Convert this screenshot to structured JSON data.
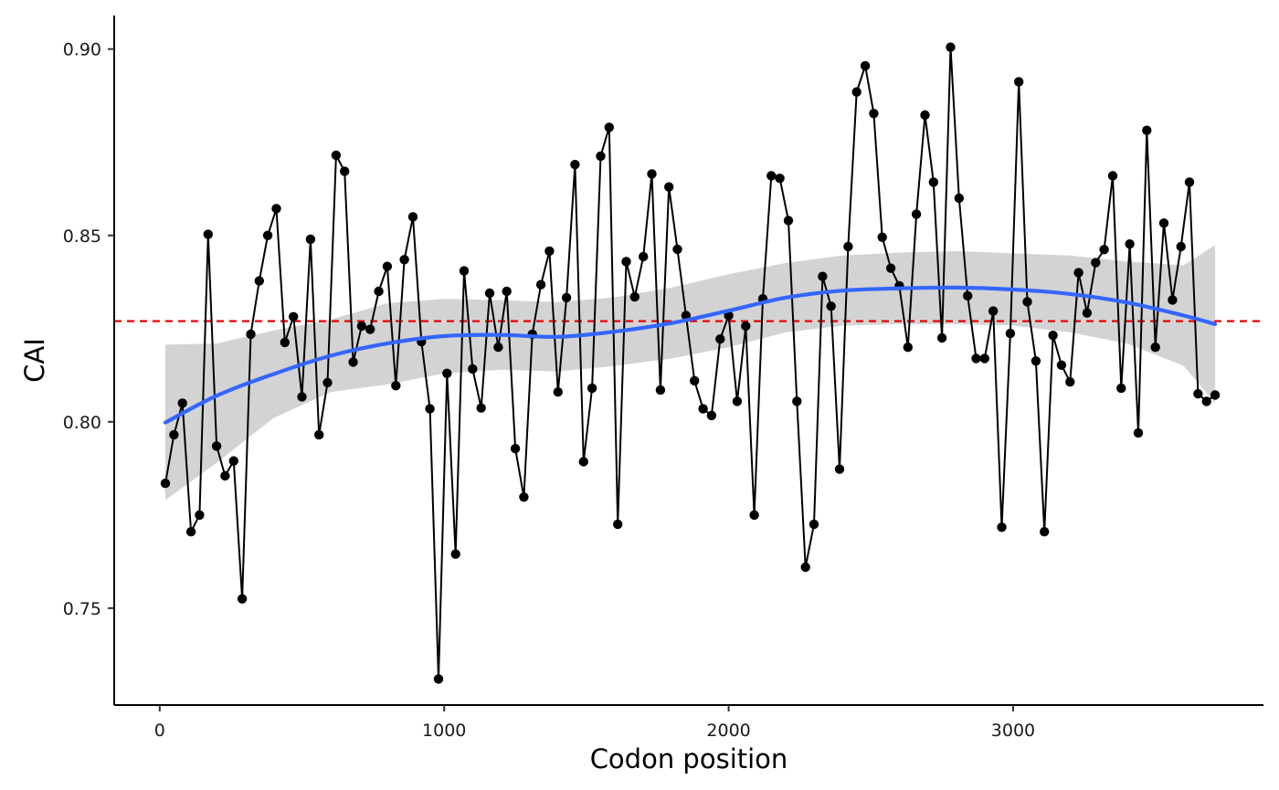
{
  "chart_data": {
    "type": "line",
    "title": "",
    "xlabel": "Codon position",
    "ylabel": "CAI",
    "xlim": [
      -160,
      3880
    ],
    "ylim": [
      0.724,
      0.909
    ],
    "x_ticks": [
      0,
      1000,
      2000,
      3000
    ],
    "x_tick_labels": [
      "0",
      "1000",
      "2000",
      "3000"
    ],
    "y_ticks": [
      0.75,
      0.8,
      0.85,
      0.9
    ],
    "y_tick_labels": [
      "0.75",
      "0.80",
      "0.85",
      "0.90"
    ],
    "grid": false,
    "legend": "none",
    "reference_line": {
      "y": 0.827,
      "style": "dashed",
      "color": "#ee0000"
    },
    "series": [
      {
        "type": "line+points",
        "color": "#000000",
        "x": [
          20,
          50,
          80,
          110,
          140,
          170,
          200,
          230,
          260,
          290,
          320,
          350,
          380,
          410,
          440,
          470,
          500,
          530,
          560,
          590,
          620,
          650,
          680,
          710,
          740,
          770,
          800,
          830,
          860,
          890,
          920,
          950,
          980,
          1010,
          1040,
          1070,
          1100,
          1130,
          1160,
          1190,
          1220,
          1250,
          1280,
          1310,
          1340,
          1370,
          1400,
          1430,
          1460,
          1490,
          1520,
          1550,
          1580,
          1610,
          1640,
          1670,
          1700,
          1730,
          1760,
          1790,
          1820,
          1850,
          1880,
          1910,
          1940,
          1970,
          2000,
          2030,
          2060,
          2090,
          2120,
          2150,
          2180,
          2210,
          2240,
          2270,
          2300,
          2330,
          2360,
          2390,
          2420,
          2450,
          2480,
          2510,
          2540,
          2570,
          2600,
          2630,
          2660,
          2690,
          2720,
          2750,
          2780,
          2810,
          2840,
          2870,
          2900,
          2930,
          2960,
          2990,
          3020,
          3050,
          3080,
          3110,
          3140,
          3170,
          3200,
          3230,
          3260,
          3290,
          3320,
          3350,
          3380,
          3410,
          3440,
          3470,
          3500,
          3530,
          3560,
          3590,
          3620,
          3650,
          3680,
          3710
        ],
        "y": [
          0.7835,
          0.7965,
          0.805,
          0.7705,
          0.775,
          0.8503,
          0.7935,
          0.7855,
          0.7895,
          0.7525,
          0.8235,
          0.8378,
          0.85,
          0.8572,
          0.8213,
          0.8282,
          0.8067,
          0.849,
          0.7965,
          0.8105,
          0.8715,
          0.8672,
          0.816,
          0.8257,
          0.8248,
          0.835,
          0.8417,
          0.8097,
          0.8435,
          0.855,
          0.8215,
          0.8035,
          0.731,
          0.813,
          0.7645,
          0.8405,
          0.8142,
          0.8037,
          0.8345,
          0.82,
          0.835,
          0.7928,
          0.7798,
          0.8235,
          0.8368,
          0.8458,
          0.808,
          0.8333,
          0.869,
          0.7893,
          0.809,
          0.8713,
          0.879,
          0.7725,
          0.843,
          0.8335,
          0.8443,
          0.8665,
          0.8085,
          0.863,
          0.8463,
          0.8285,
          0.811,
          0.8035,
          0.8017,
          0.8222,
          0.8285,
          0.8055,
          0.8257,
          0.775,
          0.833,
          0.866,
          0.8653,
          0.854,
          0.8055,
          0.761,
          0.7725,
          0.839,
          0.831,
          0.7873,
          0.847,
          0.8885,
          0.8955,
          0.8827,
          0.8495,
          0.8412,
          0.8365,
          0.82,
          0.8557,
          0.8823,
          0.8643,
          0.8225,
          0.9005,
          0.86,
          0.8338,
          0.817,
          0.817,
          0.8297,
          0.7717,
          0.8237,
          0.8912,
          0.8322,
          0.8163,
          0.7705,
          0.8232,
          0.8152,
          0.8107,
          0.84,
          0.8292,
          0.8427,
          0.8462,
          0.866,
          0.809,
          0.8477,
          0.797,
          0.8782,
          0.82,
          0.8533,
          0.8327,
          0.847,
          0.8643,
          0.8075,
          0.8055,
          0.8072
        ]
      },
      {
        "type": "smooth",
        "color": "#3366ff",
        "ribbon_color": "#d3d3d3",
        "x": [
          20,
          200,
          400,
          600,
          800,
          1000,
          1200,
          1400,
          1600,
          1800,
          2000,
          2200,
          2400,
          2600,
          2800,
          3000,
          3200,
          3400,
          3600,
          3710
        ],
        "y": [
          0.7998,
          0.807,
          0.8128,
          0.8177,
          0.821,
          0.823,
          0.8233,
          0.8228,
          0.8242,
          0.8265,
          0.8298,
          0.8333,
          0.8352,
          0.8358,
          0.836,
          0.8355,
          0.8343,
          0.832,
          0.8285,
          0.8262
        ],
        "lower": [
          0.779,
          0.789,
          0.801,
          0.808,
          0.81,
          0.813,
          0.814,
          0.8135,
          0.815,
          0.817,
          0.82,
          0.824,
          0.8258,
          0.8262,
          0.8262,
          0.8258,
          0.824,
          0.821,
          0.815,
          0.805
        ],
        "upper": [
          0.8207,
          0.821,
          0.8245,
          0.8274,
          0.8318,
          0.833,
          0.8326,
          0.8321,
          0.8334,
          0.836,
          0.8396,
          0.8426,
          0.8446,
          0.8454,
          0.8458,
          0.8452,
          0.8446,
          0.843,
          0.842,
          0.8474
        ]
      }
    ]
  }
}
